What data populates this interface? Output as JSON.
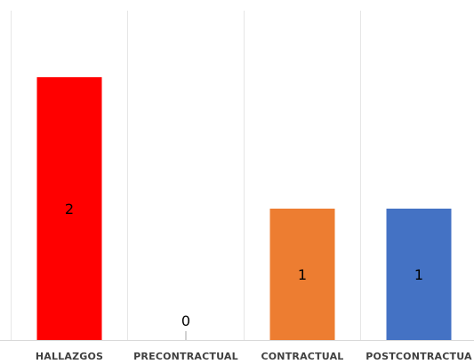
{
  "chart_data": {
    "type": "bar",
    "categories": [
      "HALLAZGOS",
      "PRECONTRACTUAL",
      "CONTRACTUAL",
      "POSTCONTRACTUA"
    ],
    "values": [
      2,
      0,
      1,
      1
    ],
    "data_labels": [
      "2",
      "0",
      "1",
      "1"
    ],
    "bar_colors": [
      "#ff0000",
      "#a5a5a5",
      "#ed7d31",
      "#4472c4"
    ],
    "ylim": [
      0,
      2.5
    ],
    "grid": "vertical-category-separators",
    "legend": "none"
  }
}
